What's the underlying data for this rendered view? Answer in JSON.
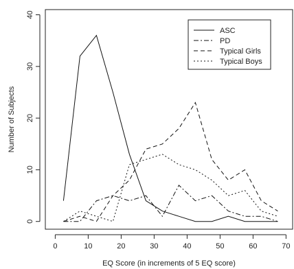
{
  "chart_data": {
    "type": "line",
    "title": "",
    "xlabel": "EQ Score (in increments of 5 EQ score)",
    "ylabel": "Number of Subjects",
    "xlim": [
      -3,
      72
    ],
    "ylim": [
      -1.5,
      41
    ],
    "xticks": [
      0,
      10,
      20,
      30,
      40,
      50,
      60,
      70
    ],
    "yticks": [
      0,
      10,
      20,
      30,
      40
    ],
    "grid": false,
    "legend_position": "top-right",
    "x": [
      2.5,
      7.5,
      12.5,
      17.5,
      22.5,
      27.5,
      32.5,
      37.5,
      42.5,
      47.5,
      52.5,
      57.5,
      62.5,
      67.5
    ],
    "series": [
      {
        "name": "ASC",
        "dash": "solid",
        "values": [
          4,
          32,
          36,
          25,
          13,
          4,
          2,
          1,
          0,
          0,
          1,
          0,
          0,
          0
        ]
      },
      {
        "name": "PD",
        "dash": "dashdot",
        "values": [
          0,
          0,
          4,
          5,
          4,
          5,
          1,
          7,
          4,
          5,
          2,
          1,
          1,
          0
        ]
      },
      {
        "name": "Typical Girls",
        "dash": "dashed",
        "values": [
          0,
          1,
          0,
          5,
          8,
          14,
          15,
          18,
          23,
          12,
          8,
          10,
          4,
          2
        ]
      },
      {
        "name": "Typical Boys",
        "dash": "dotted",
        "values": [
          0,
          2,
          1,
          0,
          11,
          12,
          13,
          11,
          10,
          8,
          5,
          6,
          2,
          1
        ]
      }
    ]
  }
}
